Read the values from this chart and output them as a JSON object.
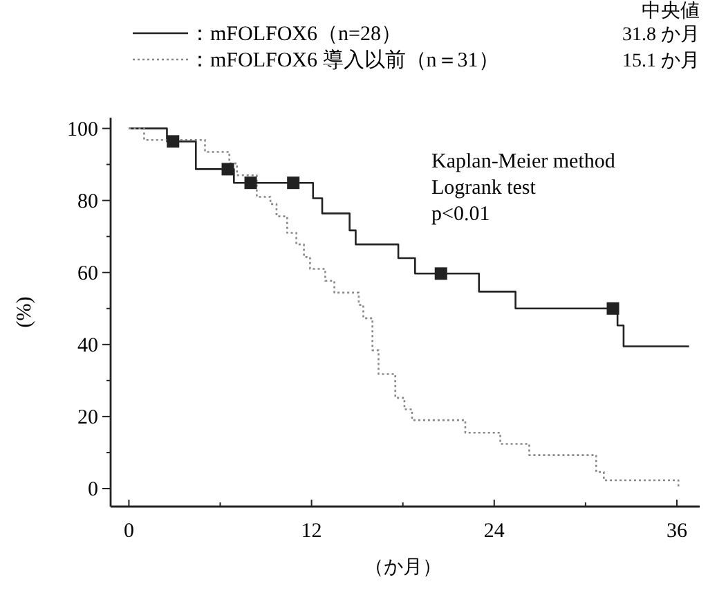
{
  "chart_data": {
    "type": "step",
    "xlabel": "（か月）",
    "ylabel": "(%)",
    "xlim": [
      -1.2,
      37.5
    ],
    "ylim": [
      -5,
      103
    ],
    "xticks": [
      0,
      {
        "value": 6,
        "label": null
      },
      12,
      {
        "value": 18,
        "label": null
      },
      24,
      {
        "value": 30,
        "label": null
      },
      36
    ],
    "yticks": [
      0,
      {
        "value": 10,
        "label": null
      },
      20,
      {
        "value": 30,
        "label": null
      },
      40,
      {
        "value": 50,
        "label": null
      },
      60,
      {
        "value": 70,
        "label": null
      },
      80,
      {
        "value": 90,
        "label": null
      },
      100
    ],
    "grid": false,
    "legend": "top",
    "annotations": [
      "中央値",
      "31.8 か月",
      "15.1 か月",
      "Kaplan-Meier method",
      "Logrank test",
      "p<0.01"
    ],
    "series": [
      {
        "name": "：mFOLFOX6（n=28）",
        "color": "#222222",
        "line_style": "solid",
        "x": [
          0,
          2.5,
          4.4,
          6.9,
          12.1,
          12.7,
          14.5,
          14.9,
          17.7,
          18.8,
          23.0,
          25.4,
          32.1,
          32.5,
          36.8
        ],
        "values": [
          100,
          96.4,
          88.7,
          84.9,
          80.6,
          76.4,
          71.7,
          67.8,
          64,
          59.7,
          54.7,
          50,
          45.3,
          39.5,
          39.5
        ]
      },
      {
        "name": "：mFOLFOX6 導入以前（n＝31）",
        "color": "#888888",
        "line_style": "dotted",
        "x": [
          0,
          1.0,
          5.0,
          6.6,
          7.1,
          8.4,
          9.3,
          9.7,
          10.4,
          11.0,
          11.5,
          11.9,
          12.9,
          13.5,
          15.1,
          15.4,
          16.0,
          16.4,
          17.5,
          18.1,
          18.6,
          22.1,
          24.4,
          26.3,
          30.7,
          31.2,
          36.1
        ],
        "values": [
          100,
          96.8,
          93.5,
          90.3,
          87,
          81,
          79,
          75.6,
          71,
          67.8,
          64.3,
          61,
          57.7,
          54.4,
          51,
          47.3,
          38.4,
          31.8,
          25.2,
          22,
          19,
          15.5,
          12.4,
          9.3,
          4.6,
          2.3,
          0
        ]
      },
      {
        "type": "scatter",
        "color": "#222222",
        "marker": "square",
        "x": [
          2.9,
          6.5,
          8.0,
          10.8,
          20.5,
          31.8
        ],
        "values": [
          96.4,
          88.7,
          84.9,
          84.9,
          59.7,
          50
        ]
      }
    ]
  }
}
